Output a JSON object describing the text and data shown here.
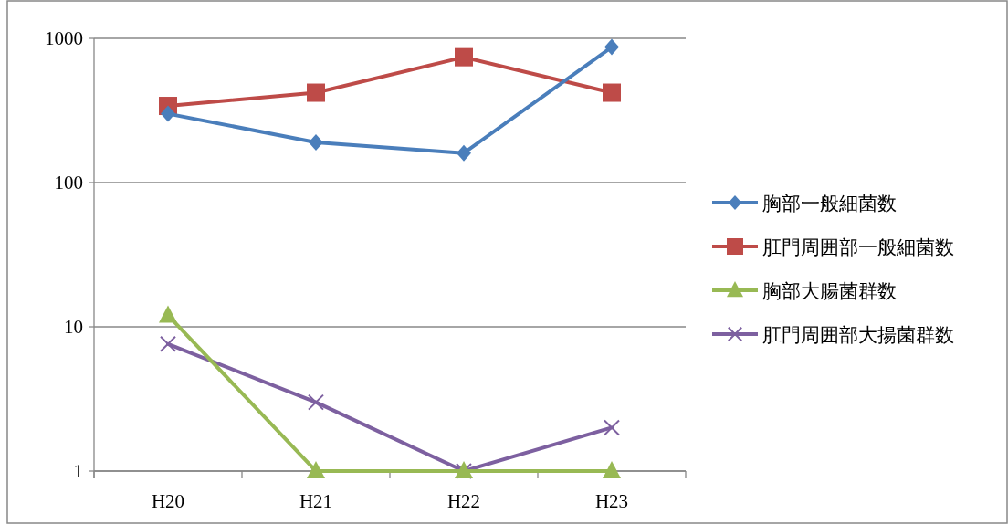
{
  "chart_data": {
    "type": "line",
    "categories": [
      "H20",
      "H21",
      "H22",
      "H23"
    ],
    "series": [
      {
        "name": "胸部一般細菌数",
        "color": "#4a7ebb",
        "marker": "diamond",
        "values": [
          300,
          190,
          160,
          870
        ]
      },
      {
        "name": "肛門周囲部一般細菌数",
        "color": "#be4b48",
        "marker": "square",
        "values": [
          340,
          420,
          740,
          420
        ]
      },
      {
        "name": "胸部大腸菌群数",
        "color": "#98b954",
        "marker": "triangle",
        "values": [
          12,
          1,
          1,
          1
        ]
      },
      {
        "name": "肛門周囲部大揚菌群数",
        "color": "#7d60a0",
        "marker": "cross",
        "values": [
          7.6,
          3,
          1,
          2
        ]
      }
    ],
    "log": "y",
    "ylim": [
      1,
      1000
    ],
    "yticks": [
      1,
      10,
      100,
      1000
    ],
    "grid": "y",
    "legend": "right",
    "line_style": "solid"
  }
}
